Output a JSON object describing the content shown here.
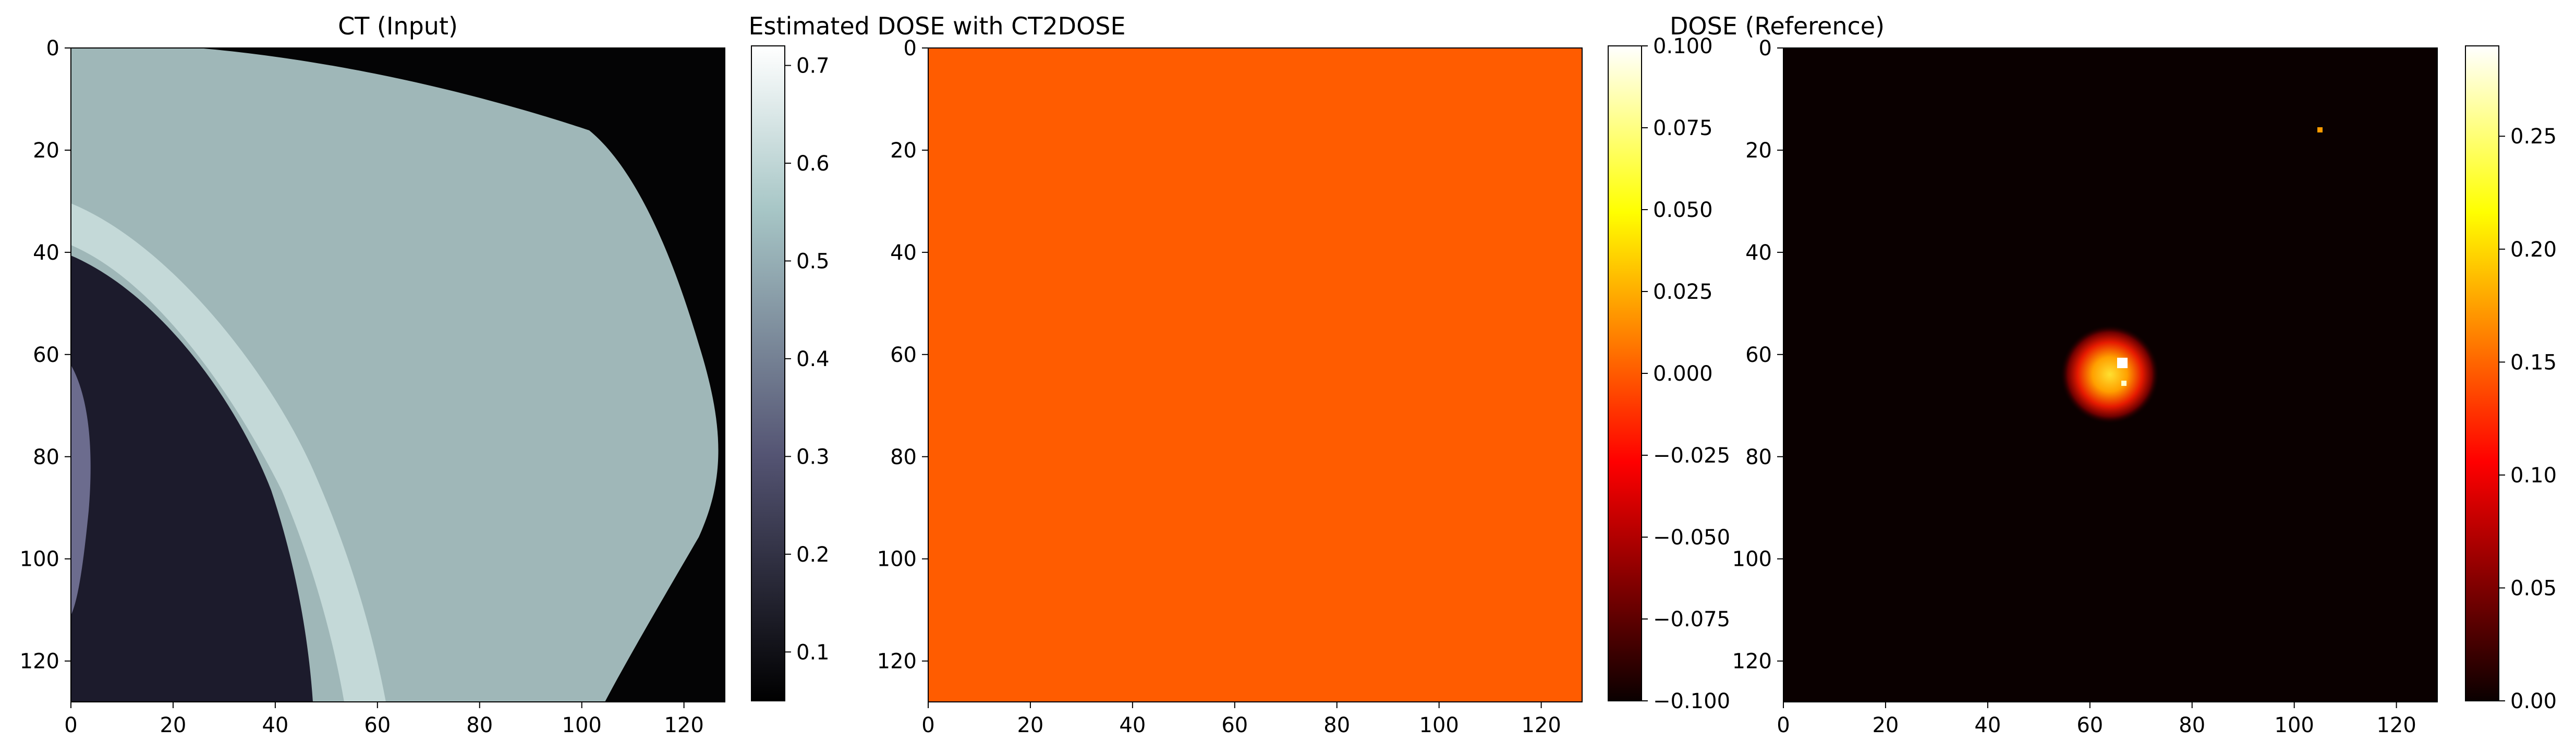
{
  "chart_data": [
    {
      "type": "heatmap",
      "title": "CT (Input)",
      "colormap": "bone",
      "x_ticks": [
        0,
        20,
        40,
        60,
        80,
        100,
        120
      ],
      "y_ticks": [
        0,
        20,
        40,
        60,
        80,
        100,
        120
      ],
      "xlim": [
        0,
        128
      ],
      "ylim": [
        128,
        0
      ],
      "colorbar": {
        "ticks": [
          0.1,
          0.2,
          0.3,
          0.4,
          0.5,
          0.6,
          0.7
        ],
        "range": [
          0.05,
          0.72
        ]
      },
      "content": {
        "background_value": 0.05,
        "tissue_value": 0.55,
        "lung_value": 0.15,
        "rib_value": 0.68
      }
    },
    {
      "type": "heatmap",
      "title": "Estimated DOSE with CT2DOSE",
      "colormap": "hot",
      "x_ticks": [
        0,
        20,
        40,
        60,
        80,
        100,
        120
      ],
      "y_ticks": [
        0,
        20,
        40,
        60,
        80,
        100,
        120
      ],
      "xlim": [
        0,
        128
      ],
      "ylim": [
        128,
        0
      ],
      "colorbar": {
        "ticks": [
          0.1,
          0.075,
          0.05,
          0.025,
          0.0,
          -0.025,
          -0.05,
          -0.075,
          -0.1
        ],
        "tick_labels": [
          "0.100",
          "0.075",
          "0.050",
          "0.025",
          "0.000",
          "−0.025",
          "−0.050",
          "−0.075",
          "−0.100"
        ],
        "range": [
          -0.1,
          0.1
        ]
      },
      "content": {
        "uniform_value": 0.0
      }
    },
    {
      "type": "heatmap",
      "title": "DOSE (Reference)",
      "colormap": "hot",
      "x_ticks": [
        0,
        20,
        40,
        60,
        80,
        100,
        120
      ],
      "y_ticks": [
        0,
        20,
        40,
        60,
        80,
        100,
        120
      ],
      "xlim": [
        0,
        128
      ],
      "ylim": [
        128,
        0
      ],
      "colorbar": {
        "ticks": [
          0.0,
          0.05,
          0.1,
          0.15,
          0.2,
          0.25
        ],
        "tick_labels": [
          "0.00",
          "0.05",
          "0.10",
          "0.15",
          "0.20",
          "0.25"
        ],
        "range": [
          0.0,
          0.29
        ]
      },
      "content": {
        "hotspot_center": [
          64,
          64
        ],
        "hotspot_peak": 0.2,
        "isolated_point": [
          105,
          16
        ],
        "isolated_value": 0.16
      }
    }
  ]
}
